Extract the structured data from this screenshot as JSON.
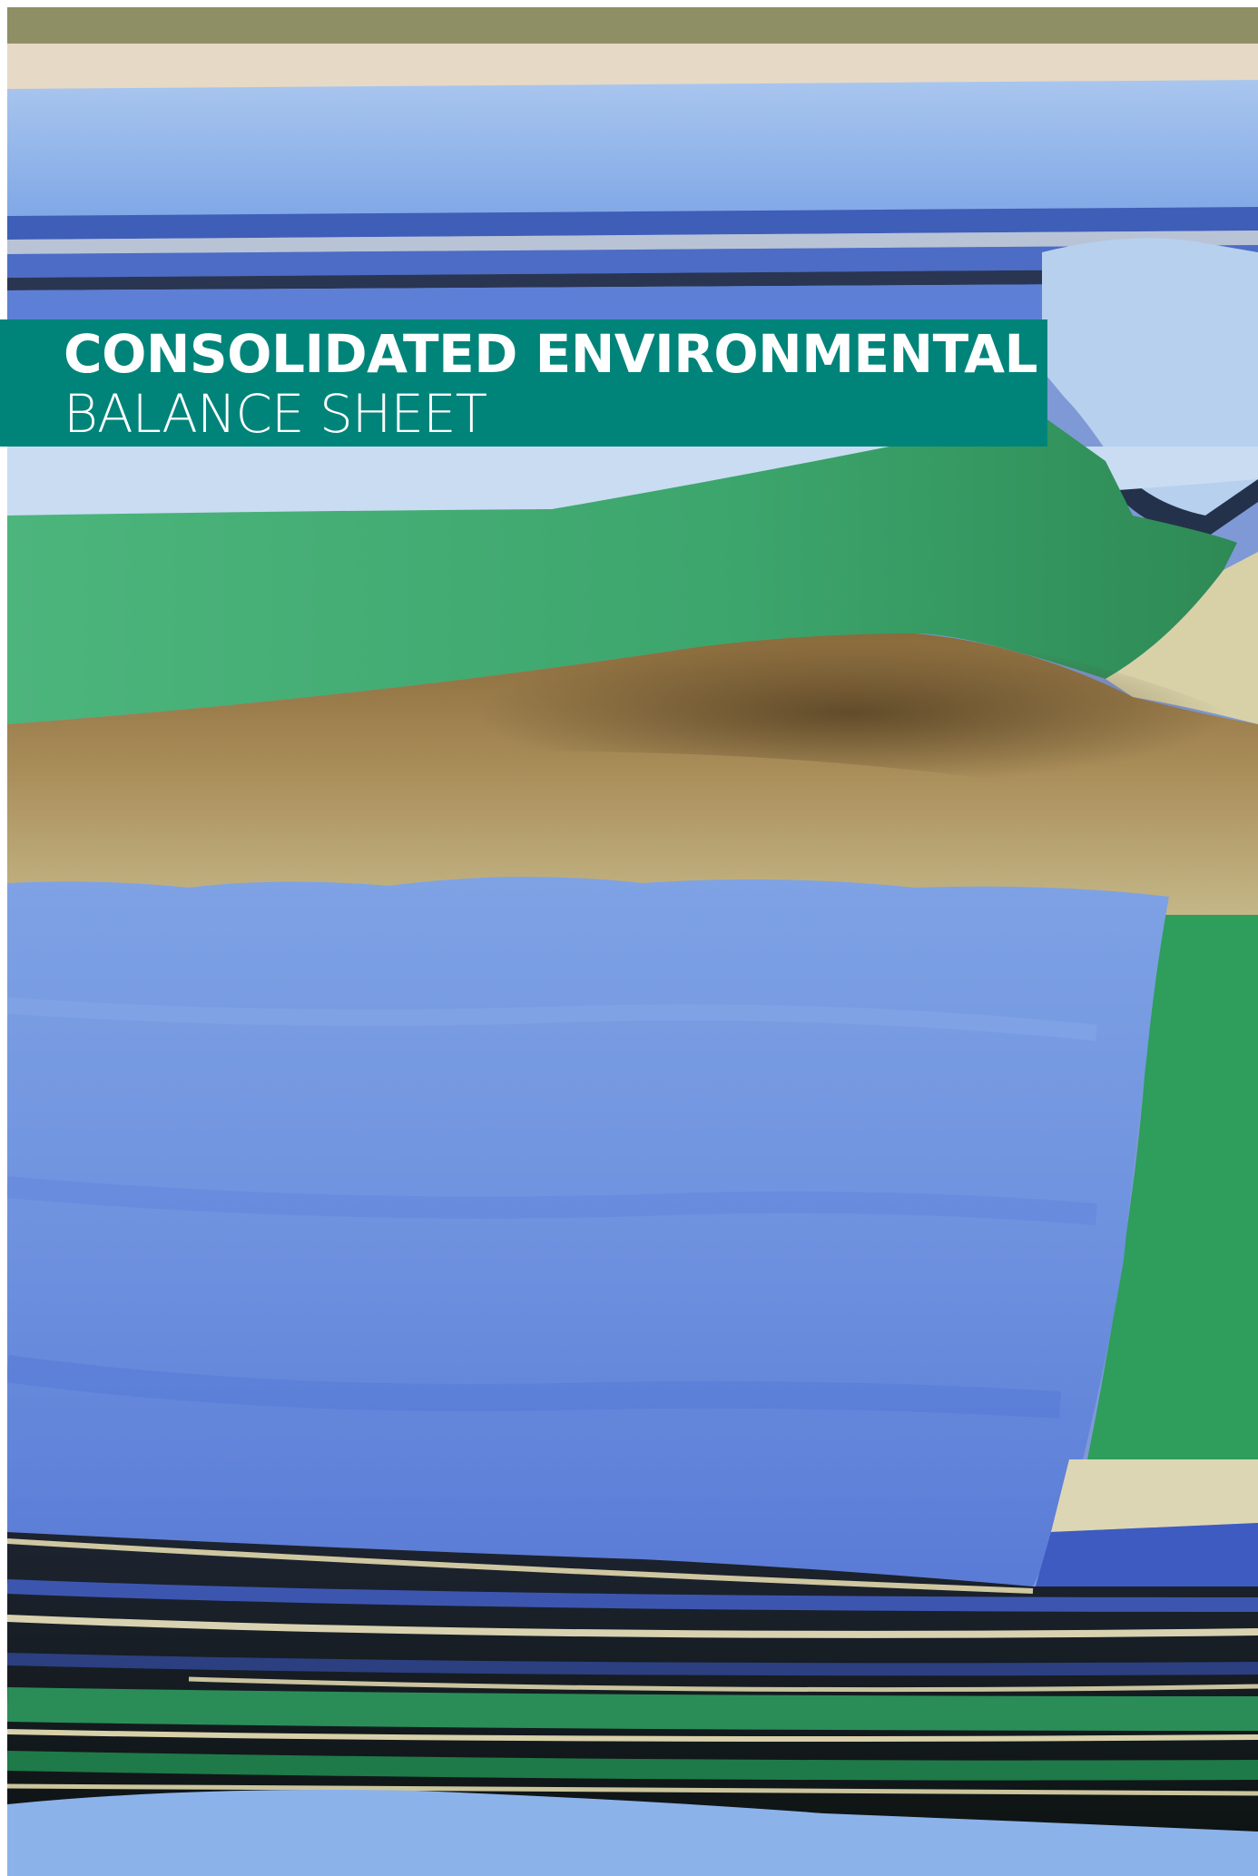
{
  "cover": {
    "title_line_1": "CONSOLIDATED ENVIRONMENTAL",
    "title_line_2": "BALANCE SHEET"
  },
  "colors": {
    "banner": "#00847a",
    "title_text": "#ffffff",
    "felt_blue": "#7f99d6",
    "felt_green": "#3aa56a",
    "felt_brown": "#8a6d3f",
    "felt_beige": "#c8bf8f"
  },
  "photo": {
    "subject": "stacked-felt-layers-photo"
  }
}
